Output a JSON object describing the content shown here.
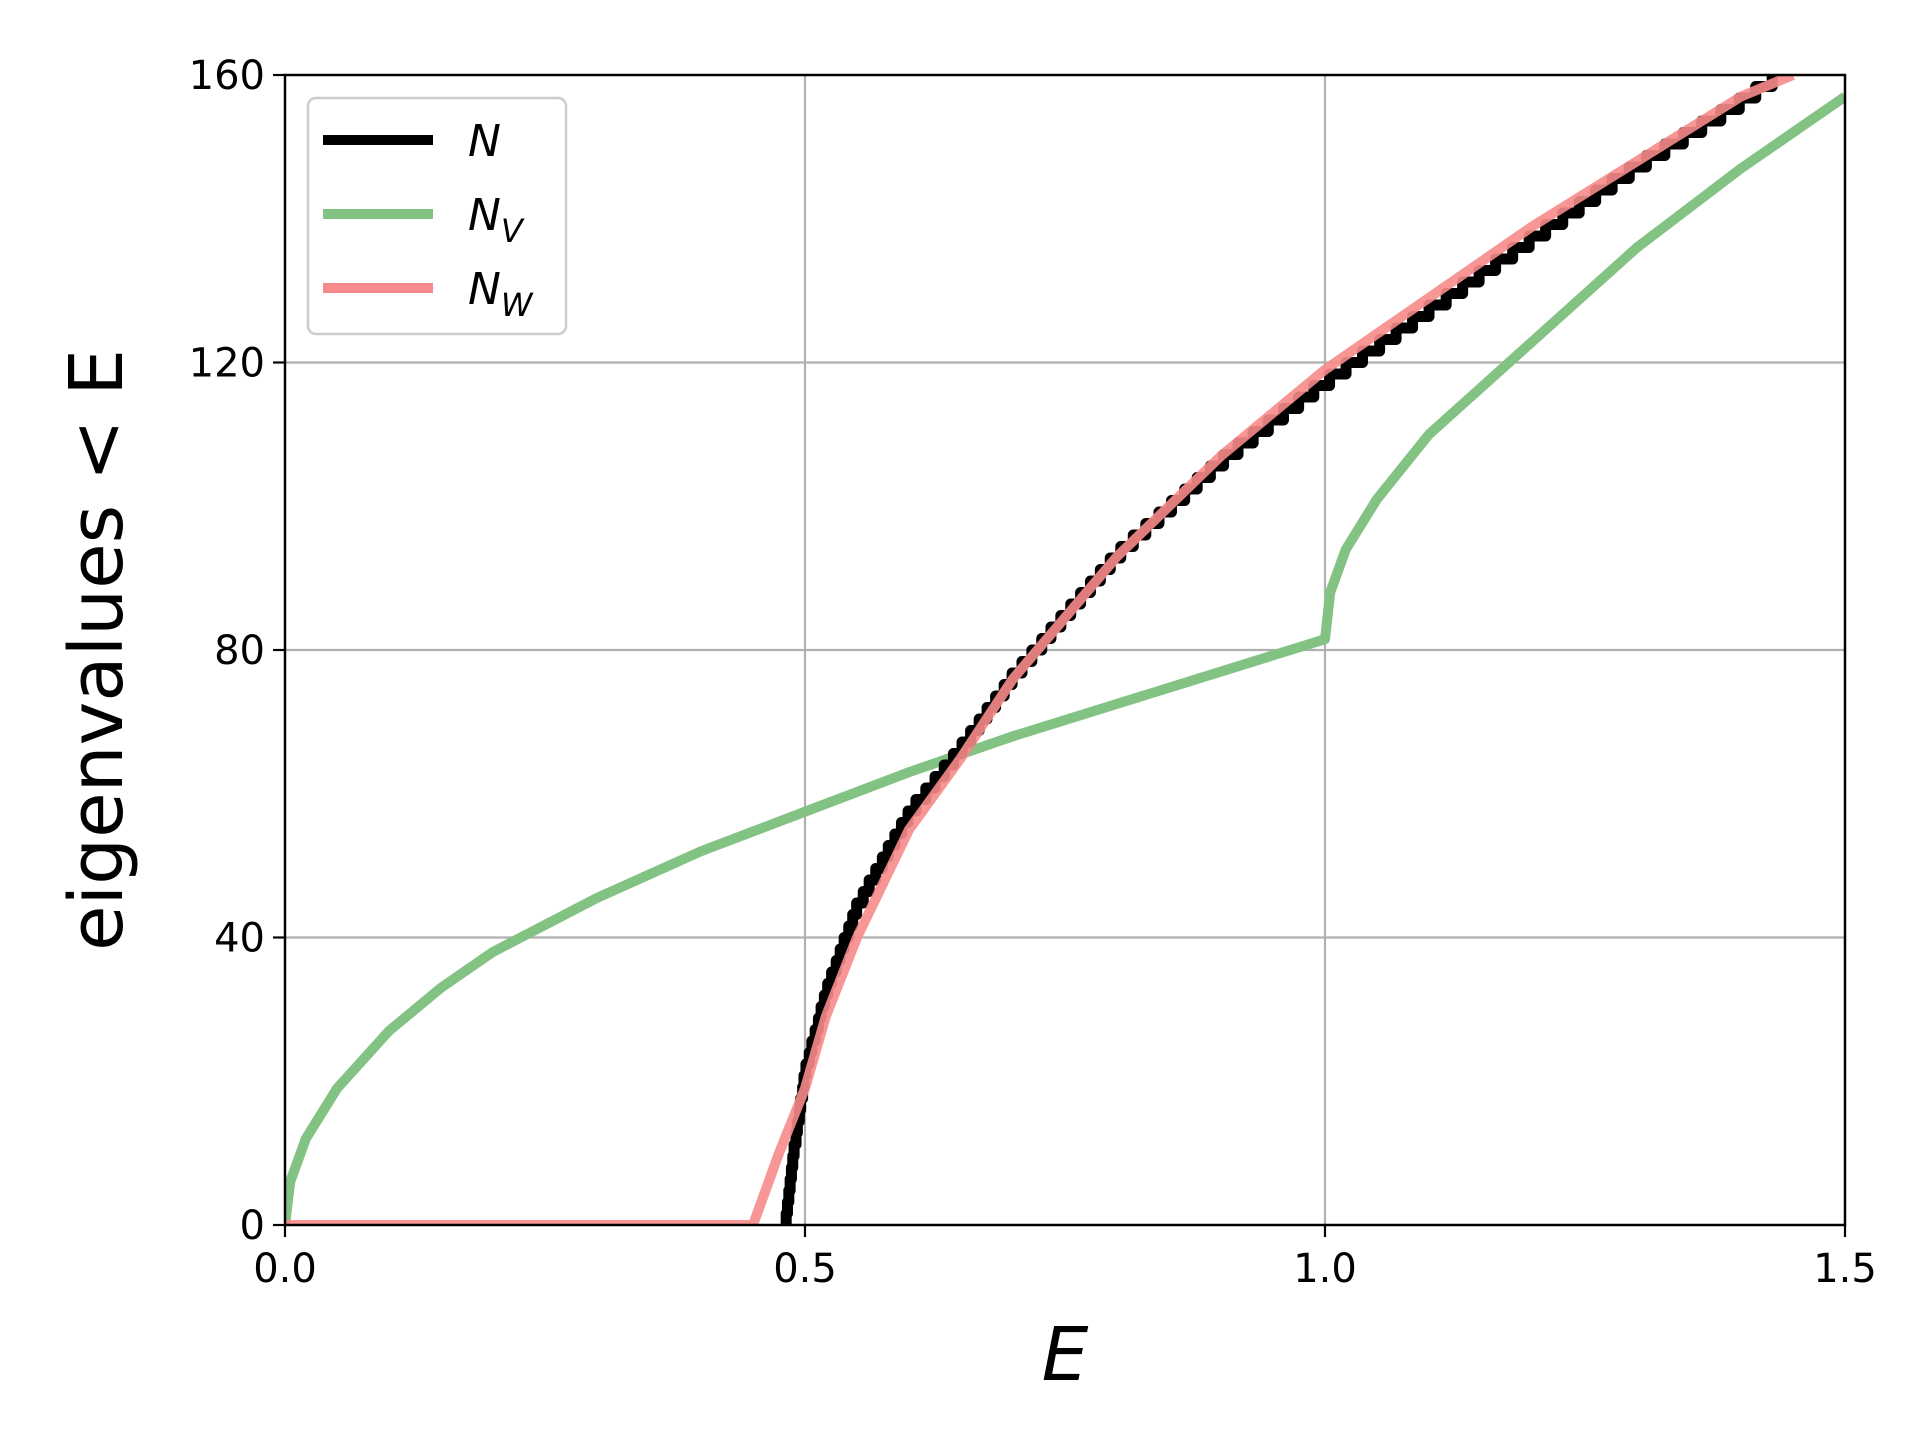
{
  "chart_data": {
    "type": "line",
    "xlabel": "E",
    "ylabel": "eigenvalues  < E",
    "xlim": [
      0.0,
      1.5
    ],
    "ylim": [
      0,
      160
    ],
    "x_ticks": [
      "0.0",
      "0.5",
      "1.0",
      "1.5"
    ],
    "y_ticks": [
      "0",
      "40",
      "80",
      "120",
      "160"
    ],
    "x_tick_values": [
      0.0,
      0.5,
      1.0,
      1.5
    ],
    "y_tick_values": [
      0,
      40,
      80,
      120,
      160
    ],
    "grid": true,
    "legend_position": "top-left",
    "series": [
      {
        "name": "N",
        "sub": "",
        "color": "#000000",
        "style": "step",
        "x": [
          0.48,
          0.49,
          0.5,
          0.52,
          0.55,
          0.6,
          0.65,
          0.7,
          0.8,
          0.9,
          1.0,
          1.1,
          1.2,
          1.3,
          1.4,
          1.43
        ],
        "y": [
          0,
          12,
          22,
          33,
          45,
          58,
          67,
          77,
          94,
          107,
          118,
          128,
          138,
          148,
          157,
          160
        ]
      },
      {
        "name": "N",
        "sub": "V",
        "color": "#82c282",
        "style": "line",
        "x": [
          0.0,
          0.005,
          0.02,
          0.05,
          0.1,
          0.15,
          0.2,
          0.3,
          0.4,
          0.5,
          0.6,
          0.7,
          0.8,
          0.9,
          1.0,
          1.005,
          1.02,
          1.05,
          1.1,
          1.2,
          1.3,
          1.4,
          1.5
        ],
        "y": [
          0,
          6,
          12,
          19,
          27,
          33,
          38,
          45.5,
          52,
          57.5,
          63,
          68,
          72.5,
          77,
          81.5,
          88,
          94,
          101,
          110,
          123,
          136,
          147,
          157
        ]
      },
      {
        "name": "N",
        "sub": "W",
        "color": "#f78a8a",
        "style": "line",
        "x": [
          0.0,
          0.45,
          0.475,
          0.5,
          0.52,
          0.55,
          0.6,
          0.65,
          0.7,
          0.8,
          0.9,
          1.0,
          1.1,
          1.2,
          1.3,
          1.4,
          1.45
        ],
        "y": [
          0,
          0,
          10,
          19,
          29,
          40,
          55,
          65,
          76,
          93,
          107,
          119,
          129,
          139,
          148,
          157,
          160
        ]
      }
    ]
  }
}
